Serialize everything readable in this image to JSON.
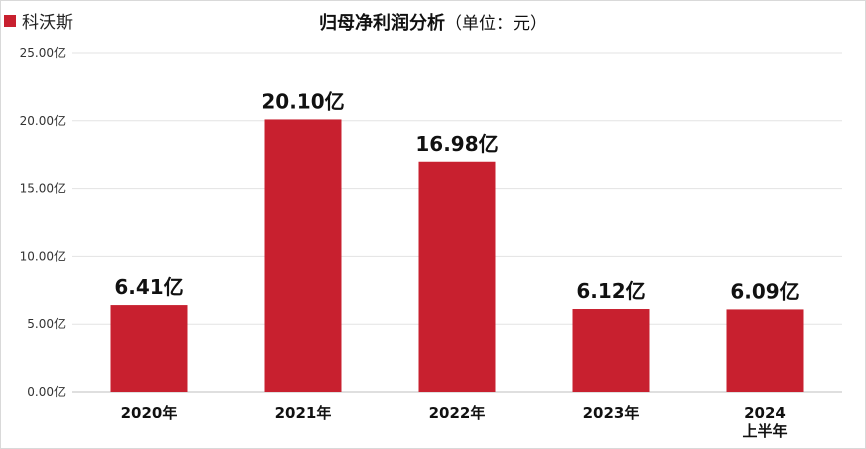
{
  "legend": {
    "label": "科沃斯"
  },
  "title": {
    "main": "归母净利润分析",
    "unit": "（单位：元）"
  },
  "colors": {
    "bar": "#c8202f",
    "grid": "#e3e3e3"
  },
  "chart_data": {
    "type": "bar",
    "title": "归母净利润分析（单位：元）",
    "categories": [
      [
        "2020年"
      ],
      [
        "2021年"
      ],
      [
        "2022年"
      ],
      [
        "2023年"
      ],
      [
        "2024",
        "上半年"
      ]
    ],
    "series": [
      {
        "name": "科沃斯",
        "values": [
          6.41,
          20.1,
          16.98,
          6.12,
          6.09
        ]
      }
    ],
    "data_labels": [
      "6.41亿",
      "20.10亿",
      "16.98亿",
      "6.12亿",
      "6.09亿"
    ],
    "y_ticks": [
      {
        "value": 0,
        "label": "0.00亿"
      },
      {
        "value": 5,
        "label": "5.00亿"
      },
      {
        "value": 10,
        "label": "10.00亿"
      },
      {
        "value": 15,
        "label": "15.00亿"
      },
      {
        "value": 20,
        "label": "20.00亿"
      },
      {
        "value": 25,
        "label": "25.00亿"
      }
    ],
    "ylim": [
      0,
      25
    ],
    "grid": true,
    "legend_position": "top-left"
  }
}
